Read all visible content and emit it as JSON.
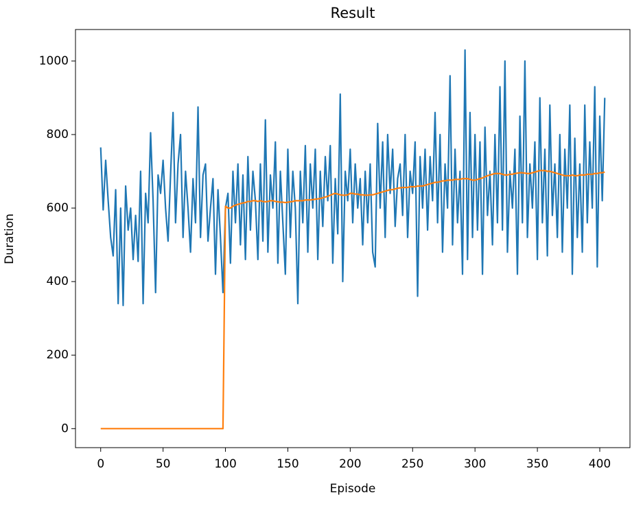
{
  "chart_data": {
    "type": "line",
    "title": "Result",
    "x_label": "Episode",
    "y_label": "Duration",
    "x": [
      0,
      2,
      4,
      6,
      8,
      10,
      12,
      14,
      16,
      18,
      20,
      22,
      24,
      26,
      28,
      30,
      32,
      34,
      36,
      38,
      40,
      42,
      44,
      46,
      48,
      50,
      52,
      54,
      56,
      58,
      60,
      62,
      64,
      66,
      68,
      70,
      72,
      74,
      76,
      78,
      80,
      82,
      84,
      86,
      88,
      90,
      92,
      94,
      96,
      98,
      100,
      102,
      104,
      106,
      108,
      110,
      112,
      114,
      116,
      118,
      120,
      122,
      124,
      126,
      128,
      130,
      132,
      134,
      136,
      138,
      140,
      142,
      144,
      146,
      148,
      150,
      152,
      154,
      156,
      158,
      160,
      162,
      164,
      166,
      168,
      170,
      172,
      174,
      176,
      178,
      180,
      182,
      184,
      186,
      188,
      190,
      192,
      194,
      196,
      198,
      200,
      202,
      204,
      206,
      208,
      210,
      212,
      214,
      216,
      218,
      220,
      222,
      224,
      226,
      228,
      230,
      232,
      234,
      236,
      238,
      240,
      242,
      244,
      246,
      248,
      250,
      252,
      254,
      256,
      258,
      260,
      262,
      264,
      266,
      268,
      270,
      272,
      274,
      276,
      278,
      280,
      282,
      284,
      286,
      288,
      290,
      292,
      294,
      296,
      298,
      300,
      302,
      304,
      306,
      308,
      310,
      312,
      314,
      316,
      318,
      320,
      322,
      324,
      326,
      328,
      330,
      332,
      334,
      336,
      338,
      340,
      342,
      344,
      346,
      348,
      350,
      352,
      354,
      356,
      358,
      360,
      362,
      364,
      366,
      368,
      370,
      372,
      374,
      376,
      378,
      380,
      382,
      384,
      386,
      388,
      390,
      392,
      394,
      396,
      398,
      400,
      402,
      404
    ],
    "series": [
      {
        "color": "#1f77b4",
        "values": [
          765,
          595,
          730,
          620,
          520,
          470,
          650,
          340,
          600,
          335,
          660,
          540,
          600,
          460,
          580,
          455,
          700,
          340,
          640,
          560,
          805,
          620,
          370,
          690,
          640,
          730,
          600,
          510,
          690,
          860,
          560,
          720,
          800,
          520,
          700,
          600,
          480,
          680,
          560,
          875,
          520,
          690,
          720,
          510,
          600,
          680,
          420,
          650,
          520,
          370,
          600,
          640,
          450,
          700,
          560,
          720,
          500,
          690,
          460,
          740,
          540,
          700,
          620,
          460,
          720,
          510,
          840,
          480,
          690,
          600,
          780,
          450,
          700,
          560,
          420,
          760,
          520,
          700,
          600,
          340,
          700,
          560,
          770,
          480,
          720,
          600,
          760,
          460,
          700,
          550,
          740,
          620,
          770,
          450,
          680,
          530,
          910,
          400,
          700,
          620,
          760,
          560,
          720,
          600,
          680,
          500,
          700,
          560,
          720,
          480,
          440,
          830,
          600,
          780,
          520,
          800,
          640,
          760,
          550,
          680,
          720,
          580,
          800,
          520,
          700,
          640,
          780,
          360,
          740,
          600,
          760,
          540,
          740,
          620,
          860,
          560,
          800,
          480,
          720,
          600,
          960,
          500,
          760,
          560,
          700,
          420,
          1030,
          460,
          860,
          520,
          800,
          540,
          780,
          420,
          820,
          580,
          700,
          500,
          800,
          560,
          930,
          540,
          1000,
          480,
          700,
          600,
          760,
          420,
          850,
          560,
          1000,
          520,
          720,
          600,
          780,
          460,
          900,
          560,
          760,
          470,
          880,
          580,
          720,
          520,
          800,
          480,
          760,
          600,
          880,
          420,
          790,
          520,
          720,
          480,
          880,
          560,
          780,
          600,
          930,
          440,
          850,
          620,
          900
        ]
      },
      {
        "color": "#ff7f0e",
        "values": [
          0,
          0,
          0,
          0,
          0,
          0,
          0,
          0,
          0,
          0,
          0,
          0,
          0,
          0,
          0,
          0,
          0,
          0,
          0,
          0,
          0,
          0,
          0,
          0,
          0,
          0,
          0,
          0,
          0,
          0,
          0,
          0,
          0,
          0,
          0,
          0,
          0,
          0,
          0,
          0,
          0,
          0,
          0,
          0,
          0,
          0,
          0,
          0,
          0,
          0,
          605,
          600,
          600,
          605,
          608,
          610,
          612,
          614,
          615,
          618,
          618,
          620,
          620,
          618,
          620,
          618,
          617,
          618,
          620,
          620,
          618,
          617,
          616,
          616,
          615,
          616,
          617,
          618,
          620,
          620,
          620,
          620,
          622,
          622,
          622,
          623,
          624,
          625,
          626,
          628,
          630,
          632,
          635,
          638,
          640,
          638,
          636,
          635,
          635,
          636,
          640,
          640,
          638,
          638,
          636,
          636,
          635,
          635,
          636,
          636,
          638,
          640,
          642,
          644,
          646,
          648,
          650,
          650,
          652,
          654,
          655,
          656,
          656,
          656,
          658,
          658,
          658,
          660,
          660,
          660,
          662,
          664,
          666,
          668,
          670,
          670,
          672,
          674,
          674,
          676,
          676,
          676,
          678,
          678,
          678,
          680,
          680,
          680,
          678,
          676,
          676,
          678,
          680,
          682,
          685,
          688,
          690,
          692,
          694,
          694,
          694,
          692,
          690,
          690,
          692,
          692,
          694,
          695,
          696,
          696,
          695,
          694,
          694,
          696,
          698,
          700,
          702,
          702,
          702,
          700,
          700,
          698,
          696,
          694,
          692,
          690,
          688,
          688,
          688,
          690,
          688,
          688,
          690,
          690,
          690,
          692,
          692,
          692,
          694,
          694,
          696,
          696,
          698
        ]
      }
    ],
    "xlim": [
      -20.2,
      424.2
    ],
    "ylim": [
      -51.7,
      1085.7
    ],
    "xticks": [
      0,
      50,
      100,
      150,
      200,
      250,
      300,
      350,
      400
    ],
    "yticks": [
      0,
      200,
      400,
      600,
      800,
      1000
    ]
  }
}
